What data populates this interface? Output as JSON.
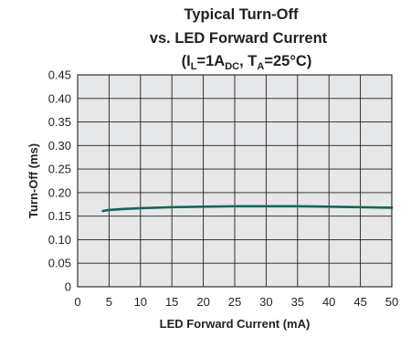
{
  "chart_data": {
    "type": "line",
    "title": {
      "line1": "Typical Turn-Off",
      "line2": "vs. LED Forward Current",
      "line3": {
        "open": "(I",
        "sub1": "L",
        "mid1": "=1A",
        "sub2": "DC",
        "mid2": ", T",
        "sub3": "A",
        "close": "=25°C)"
      }
    },
    "xlabel": "LED Forward Current (mA)",
    "ylabel": "Turn-Off (ms)",
    "xlim": [
      0,
      50
    ],
    "ylim": [
      0,
      0.45
    ],
    "x_ticks": [
      "0",
      "5",
      "10",
      "15",
      "20",
      "25",
      "30",
      "35",
      "40",
      "45",
      "50"
    ],
    "y_ticks": [
      "0",
      "0.05",
      "0.10",
      "0.15",
      "0.20",
      "0.25",
      "0.30",
      "0.35",
      "0.40",
      "0.45"
    ],
    "grid": true,
    "plot_background": "#e6e7e8",
    "grid_color": "#231f20",
    "series": [
      {
        "color": "#14665c",
        "x": [
          4,
          5,
          7,
          10,
          15,
          20,
          25,
          30,
          35,
          40,
          45,
          50
        ],
        "y": [
          0.161,
          0.163,
          0.165,
          0.167,
          0.169,
          0.17,
          0.171,
          0.171,
          0.171,
          0.17,
          0.169,
          0.168
        ]
      }
    ]
  }
}
